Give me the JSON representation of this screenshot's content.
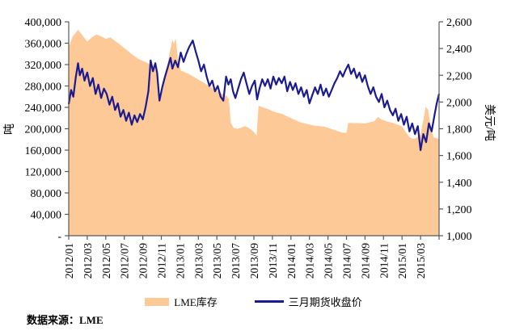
{
  "source_note": "数据来源：LME",
  "legend": {
    "inventory_label": "LME库存",
    "price_label": "三月期货收盘价"
  },
  "colors": {
    "area_fill": "#FDC997",
    "line_stroke": "#1B1B8F",
    "axis_frame": "#595959",
    "text": "#000000"
  },
  "axes": {
    "left": {
      "title": "吨",
      "tick_labels": [
        "400,000",
        "360,000",
        "320,000",
        "280,000",
        "240,000",
        "200,000",
        "160,000",
        "120,000",
        "80,000",
        "40,000",
        "-"
      ]
    },
    "right": {
      "title": "美元/吨",
      "tick_labels": [
        "2,600",
        "2,400",
        "2,200",
        "2,000",
        "1,800",
        "1,600",
        "1,400",
        "1,200",
        "1,000"
      ]
    },
    "x": {
      "tick_labels": [
        "2012/01",
        "2012/03",
        "2012/05",
        "2012/07",
        "2012/09",
        "2012/11",
        "2013/01",
        "2013/03",
        "2013/05",
        "2013/07",
        "2013/09",
        "2013/11",
        "2014/01",
        "2014/03",
        "2014/05",
        "2014/07",
        "2014/09",
        "2014/11",
        "2015/01",
        "2015/03"
      ]
    }
  },
  "chart_data": {
    "type": "combo-area-line",
    "x_unit": "months since 2012/01",
    "x_months_max": 40,
    "x_tick_step_months": 2,
    "left_axis_min": 0,
    "left_axis_max": 400000,
    "left_axis_step": 40000,
    "right_axis_min": 1000,
    "right_axis_max": 2600,
    "right_axis_step": 200,
    "grid": false,
    "legend_position": "bottom",
    "series": [
      {
        "name": "LME库存",
        "type": "area",
        "axis": "left",
        "unit": "吨",
        "color": "#FDC997",
        "points": [
          [
            0,
            352000
          ],
          [
            0.4,
            372000
          ],
          [
            1,
            385000
          ],
          [
            1.5,
            374000
          ],
          [
            2,
            363000
          ],
          [
            2.5,
            371000
          ],
          [
            3,
            376000
          ],
          [
            3.5,
            373000
          ],
          [
            4,
            368000
          ],
          [
            4.5,
            371000
          ],
          [
            5,
            364000
          ],
          [
            5.5,
            358000
          ],
          [
            6,
            351000
          ],
          [
            6.5,
            344000
          ],
          [
            7,
            337000
          ],
          [
            7.5,
            331000
          ],
          [
            8,
            327000
          ],
          [
            8.5,
            323000
          ],
          [
            9,
            319000
          ],
          [
            9.5,
            311000
          ],
          [
            9.8,
            256000
          ],
          [
            10,
            268000
          ],
          [
            10.2,
            293000
          ],
          [
            10.6,
            316000
          ],
          [
            11,
            350000
          ],
          [
            11.2,
            367000
          ],
          [
            11.35,
            359000
          ],
          [
            11.55,
            369000
          ],
          [
            11.8,
            332000
          ],
          [
            12.1,
            309000
          ],
          [
            12.6,
            305000
          ],
          [
            13,
            302000
          ],
          [
            13.5,
            297000
          ],
          [
            14,
            292000
          ],
          [
            14.5,
            287000
          ],
          [
            15,
            282000
          ],
          [
            15.5,
            276000
          ],
          [
            16,
            271000
          ],
          [
            16.5,
            266000
          ],
          [
            17,
            262000
          ],
          [
            17.3,
            256000
          ],
          [
            17.5,
            211000
          ],
          [
            17.8,
            202000
          ],
          [
            18.2,
            200000
          ],
          [
            18.6,
            202000
          ],
          [
            19,
            205000
          ],
          [
            19.5,
            201000
          ],
          [
            20,
            194000
          ],
          [
            20.3,
            187000
          ],
          [
            20.5,
            243000
          ],
          [
            21,
            240000
          ],
          [
            21.5,
            237000
          ],
          [
            22,
            233000
          ],
          [
            22.5,
            230000
          ],
          [
            23,
            228000
          ],
          [
            23.5,
            224000
          ],
          [
            24,
            220000
          ],
          [
            24.5,
            216000
          ],
          [
            25,
            212000
          ],
          [
            25.5,
            210000
          ],
          [
            26,
            208000
          ],
          [
            26.5,
            206000
          ],
          [
            27,
            205000
          ],
          [
            27.5,
            204000
          ],
          [
            28,
            202000
          ],
          [
            28.5,
            199000
          ],
          [
            29,
            196000
          ],
          [
            29.5,
            193000
          ],
          [
            30,
            192000
          ],
          [
            30.2,
            211000
          ],
          [
            31,
            210500
          ],
          [
            32,
            210000
          ],
          [
            32.5,
            212000
          ],
          [
            33,
            214000
          ],
          [
            33.4,
            222000
          ],
          [
            33.8,
            217000
          ],
          [
            34.5,
            213000
          ],
          [
            35,
            211000
          ],
          [
            35.5,
            208000
          ],
          [
            36,
            204000
          ],
          [
            36.4,
            194000
          ],
          [
            36.8,
            184000
          ],
          [
            37.2,
            181000
          ],
          [
            37.6,
            183000
          ],
          [
            38,
            191000
          ],
          [
            38.3,
            216000
          ],
          [
            38.55,
            241000
          ],
          [
            38.8,
            236000
          ],
          [
            39.1,
            204000
          ],
          [
            39.4,
            184000
          ],
          [
            40,
            181000
          ]
        ]
      },
      {
        "name": "三月期货收盘价",
        "type": "line",
        "axis": "right",
        "unit": "美元/吨",
        "color": "#1B1B8F",
        "points": [
          [
            0,
            1985
          ],
          [
            0.25,
            2090
          ],
          [
            0.5,
            2040
          ],
          [
            0.75,
            2180
          ],
          [
            1,
            2290
          ],
          [
            1.2,
            2200
          ],
          [
            1.45,
            2250
          ],
          [
            1.7,
            2160
          ],
          [
            2,
            2220
          ],
          [
            2.3,
            2120
          ],
          [
            2.6,
            2180
          ],
          [
            2.9,
            2060
          ],
          [
            3.2,
            2130
          ],
          [
            3.5,
            2030
          ],
          [
            3.8,
            2100
          ],
          [
            4.1,
            2060
          ],
          [
            4.4,
            1980
          ],
          [
            4.7,
            2040
          ],
          [
            5,
            1940
          ],
          [
            5.3,
            1990
          ],
          [
            5.6,
            1890
          ],
          [
            5.9,
            1940
          ],
          [
            6.2,
            1860
          ],
          [
            6.5,
            1920
          ],
          [
            6.8,
            1830
          ],
          [
            7.1,
            1900
          ],
          [
            7.4,
            1850
          ],
          [
            7.7,
            1910
          ],
          [
            8,
            1870
          ],
          [
            8.3,
            1960
          ],
          [
            8.6,
            2080
          ],
          [
            8.85,
            2310
          ],
          [
            9.1,
            2230
          ],
          [
            9.35,
            2290
          ],
          [
            9.55,
            2220
          ],
          [
            9.8,
            2010
          ],
          [
            10.1,
            2110
          ],
          [
            10.4,
            2190
          ],
          [
            10.7,
            2260
          ],
          [
            11,
            2330
          ],
          [
            11.2,
            2250
          ],
          [
            11.5,
            2310
          ],
          [
            11.8,
            2260
          ],
          [
            12.1,
            2370
          ],
          [
            12.4,
            2300
          ],
          [
            12.7,
            2360
          ],
          [
            13,
            2410
          ],
          [
            13.4,
            2460
          ],
          [
            13.7,
            2380
          ],
          [
            14,
            2310
          ],
          [
            14.3,
            2230
          ],
          [
            14.6,
            2280
          ],
          [
            14.9,
            2190
          ],
          [
            15.2,
            2120
          ],
          [
            15.5,
            2160
          ],
          [
            15.8,
            2080
          ],
          [
            16.1,
            2120
          ],
          [
            16.4,
            2040
          ],
          [
            16.7,
            2010
          ],
          [
            17,
            2190
          ],
          [
            17.25,
            2130
          ],
          [
            17.5,
            2170
          ],
          [
            17.75,
            2080
          ],
          [
            18,
            2030
          ],
          [
            18.3,
            2100
          ],
          [
            18.6,
            2170
          ],
          [
            18.9,
            2220
          ],
          [
            19.2,
            2140
          ],
          [
            19.5,
            2060
          ],
          [
            19.8,
            2120
          ],
          [
            20.1,
            2160
          ],
          [
            20.35,
            2020
          ],
          [
            20.6,
            2100
          ],
          [
            20.9,
            2170
          ],
          [
            21.2,
            2120
          ],
          [
            21.5,
            2170
          ],
          [
            21.8,
            2100
          ],
          [
            22.1,
            2190
          ],
          [
            22.4,
            2130
          ],
          [
            22.7,
            2180
          ],
          [
            23,
            2140
          ],
          [
            23.3,
            2190
          ],
          [
            23.6,
            2080
          ],
          [
            23.9,
            2150
          ],
          [
            24.2,
            2090
          ],
          [
            24.5,
            2140
          ],
          [
            24.8,
            2060
          ],
          [
            25.1,
            2110
          ],
          [
            25.4,
            2040
          ],
          [
            25.7,
            2090
          ],
          [
            26,
            1990
          ],
          [
            26.3,
            2050
          ],
          [
            26.6,
            2110
          ],
          [
            26.9,
            2060
          ],
          [
            27.2,
            2130
          ],
          [
            27.5,
            2050
          ],
          [
            27.8,
            2100
          ],
          [
            28.1,
            2040
          ],
          [
            28.4,
            2090
          ],
          [
            28.7,
            2140
          ],
          [
            29,
            2180
          ],
          [
            29.3,
            2230
          ],
          [
            29.6,
            2190
          ],
          [
            29.9,
            2240
          ],
          [
            30.2,
            2280
          ],
          [
            30.5,
            2210
          ],
          [
            30.8,
            2250
          ],
          [
            31.1,
            2180
          ],
          [
            31.4,
            2220
          ],
          [
            31.7,
            2150
          ],
          [
            32,
            2200
          ],
          [
            32.3,
            2120
          ],
          [
            32.6,
            2060
          ],
          [
            32.9,
            2110
          ],
          [
            33.2,
            2040
          ],
          [
            33.5,
            2000
          ],
          [
            33.8,
            2060
          ],
          [
            34.1,
            1960
          ],
          [
            34.4,
            2010
          ],
          [
            34.7,
            1940
          ],
          [
            35,
            1900
          ],
          [
            35.3,
            1950
          ],
          [
            35.6,
            1860
          ],
          [
            35.9,
            1910
          ],
          [
            36.2,
            1830
          ],
          [
            36.5,
            1890
          ],
          [
            36.8,
            1780
          ],
          [
            37.1,
            1840
          ],
          [
            37.4,
            1760
          ],
          [
            37.7,
            1820
          ],
          [
            38,
            1640
          ],
          [
            38.3,
            1760
          ],
          [
            38.6,
            1700
          ],
          [
            38.9,
            1840
          ],
          [
            39.2,
            1780
          ],
          [
            39.5,
            1900
          ],
          [
            39.75,
            1990
          ],
          [
            40,
            2060
          ]
        ]
      }
    ]
  }
}
